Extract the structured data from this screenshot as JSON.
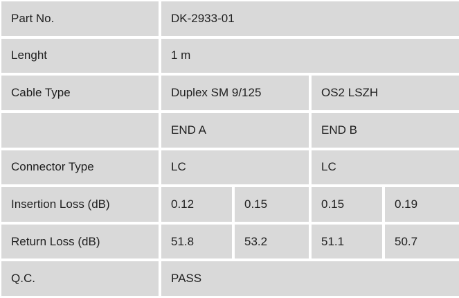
{
  "table": {
    "colors": {
      "cell_background": "#d9d9d9",
      "gap": "#ffffff",
      "text": "#1f1f1f"
    },
    "rows": [
      {
        "label": "Part No.",
        "values": [
          "DK-2933-01"
        ]
      },
      {
        "label": "Lenght",
        "values": [
          "1 m"
        ]
      },
      {
        "label": "Cable Type",
        "values": [
          "Duplex SM 9/125",
          "OS2 LSZH"
        ]
      },
      {
        "label": "",
        "values": [
          "END A",
          "END B"
        ]
      },
      {
        "label": "Connector Type",
        "values": [
          "LC",
          "LC"
        ]
      },
      {
        "label": "Insertion Loss (dB)",
        "values": [
          "0.12",
          "0.15",
          "0.15",
          "0.19"
        ]
      },
      {
        "label": "Return Loss (dB)",
        "values": [
          "51.8",
          "53.2",
          "51.1",
          "50.7"
        ]
      },
      {
        "label": "Q.C.",
        "values": [
          "PASS"
        ]
      }
    ]
  }
}
